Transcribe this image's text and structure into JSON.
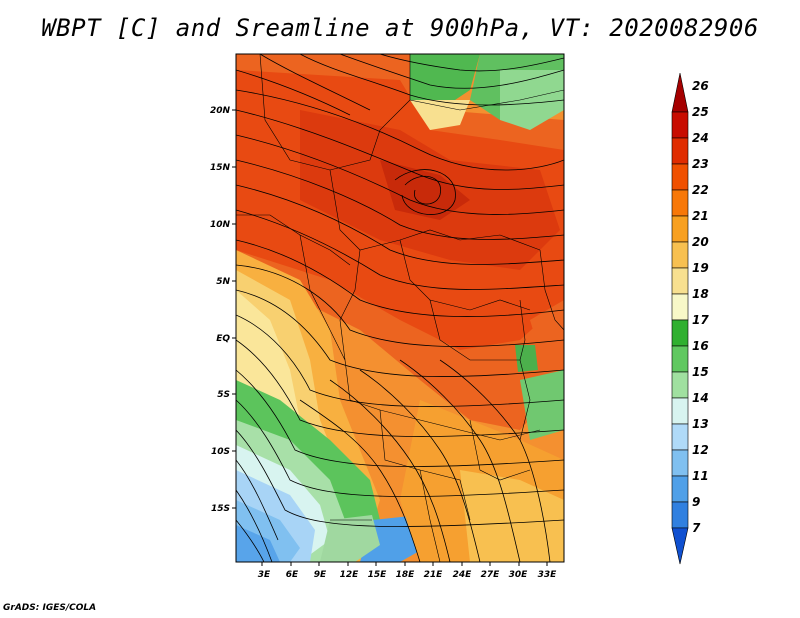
{
  "title": "WBPT [C] and Sreamline at 900hPa, VT: 2020082906",
  "footer": "GrADS: IGES/COLA",
  "map": {
    "lat_labels": [
      "20N",
      "15N",
      "10N",
      "5N",
      "EQ",
      "5S",
      "10S",
      "15S"
    ],
    "lon_labels": [
      "3E",
      "6E",
      "9E",
      "12E",
      "15E",
      "18E",
      "21E",
      "24E",
      "27E",
      "30E",
      "33E"
    ]
  },
  "colorbar": {
    "levels": [
      "26",
      "25",
      "24",
      "23",
      "22",
      "21",
      "20",
      "19",
      "18",
      "17",
      "16",
      "15",
      "14",
      "13",
      "12",
      "11",
      "9",
      "7"
    ],
    "colors": [
      "#a50000",
      "#c80c00",
      "#e02c00",
      "#f05000",
      "#f87808",
      "#f8a020",
      "#f8c050",
      "#f8e090",
      "#f8f8c8",
      "#30b030",
      "#60c860",
      "#a0e0a0",
      "#d8f4f0",
      "#b0daf8",
      "#80c0f0",
      "#50a0e8",
      "#3080e0",
      "#1050d0"
    ]
  }
}
